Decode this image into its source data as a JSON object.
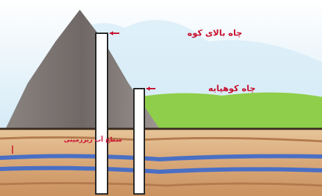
{
  "labels": {
    "mountain_well": "چاه بالای کوه",
    "foothill_well": "چاه کوهپایه",
    "water_table": "سطح آب زیرزمینی"
  }
}
